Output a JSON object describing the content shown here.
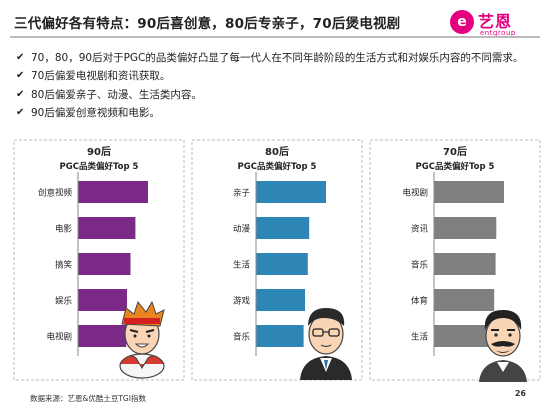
{
  "header": {
    "title": "三代偏好各有特点：90后喜创意，80后专亲子，70后煲电视剧",
    "logo_mark": "e",
    "logo_name": "艺恩",
    "logo_sub": "entgroup"
  },
  "bullets": [
    "70，80，90后对于PGC的品类偏好凸显了每一代人在不同年龄阶段的生活方式和对娱乐内容的不同需求。",
    "70后偏爱电视剧和资讯获取。",
    "80后偏爱亲子、动漫、生活类内容。",
    "90后偏爱创意视频和电影。"
  ],
  "chart_data": [
    {
      "type": "bar",
      "orientation": "horizontal",
      "title": "90后",
      "subtitle": "PGC品类偏好Top 5",
      "categories": [
        "创意视频",
        "电影",
        "搞笑",
        "娱乐",
        "电视剧"
      ],
      "values": [
        100,
        82,
        75,
        70,
        69
      ],
      "color": "#7b2a87",
      "grid": false
    },
    {
      "type": "bar",
      "orientation": "horizontal",
      "title": "80后",
      "subtitle": "PGC品类偏好Top 5",
      "categories": [
        "亲子",
        "动漫",
        "生活",
        "游戏",
        "音乐"
      ],
      "values": [
        100,
        76,
        74,
        70,
        68
      ],
      "color": "#2e86b6",
      "grid": false
    },
    {
      "type": "bar",
      "orientation": "horizontal",
      "title": "70后",
      "subtitle": "PGC品类偏好Top 5",
      "categories": [
        "电视剧",
        "资讯",
        "音乐",
        "体育",
        "生活"
      ],
      "values": [
        100,
        89,
        88,
        86,
        84
      ],
      "color": "#808080",
      "grid": false
    }
  ],
  "footer": {
    "source": "数据来源：艺恩&优酷土豆TGI指数",
    "page": "26"
  }
}
